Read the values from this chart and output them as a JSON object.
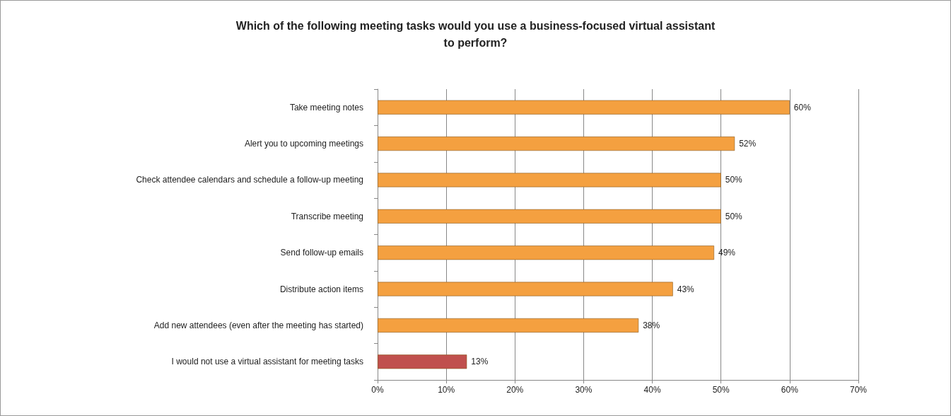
{
  "chart_data": {
    "type": "bar",
    "orientation": "horizontal",
    "title": "Which of the following meeting tasks would you use a business-focused virtual assistant\nto perform?",
    "categories": [
      "Take meeting notes",
      "Alert you to upcoming meetings",
      "Check attendee calendars and schedule a follow-up meeting",
      "Transcribe meeting",
      "Send follow-up emails",
      "Distribute action items",
      "Add new attendees (even after the meeting has started)",
      "I would not use a virtual assistant for meeting tasks"
    ],
    "values": [
      60,
      52,
      50,
      50,
      49,
      43,
      38,
      13
    ],
    "colors": [
      "#f4a040",
      "#f4a040",
      "#f4a040",
      "#f4a040",
      "#f4a040",
      "#f4a040",
      "#f4a040",
      "#c0504d"
    ],
    "value_labels": [
      "60%",
      "52%",
      "50%",
      "50%",
      "49%",
      "43%",
      "38%",
      "13%"
    ],
    "xlim": [
      0,
      70
    ],
    "xticks": [
      {
        "value": 0,
        "label": "0%"
      },
      {
        "value": 10,
        "label": "10%"
      },
      {
        "value": 20,
        "label": "20%"
      },
      {
        "value": 30,
        "label": "30%"
      },
      {
        "value": 40,
        "label": "40%"
      },
      {
        "value": 50,
        "label": "50%"
      },
      {
        "value": 60,
        "label": "60%"
      },
      {
        "value": 70,
        "label": "70%"
      }
    ],
    "grid": "x"
  }
}
